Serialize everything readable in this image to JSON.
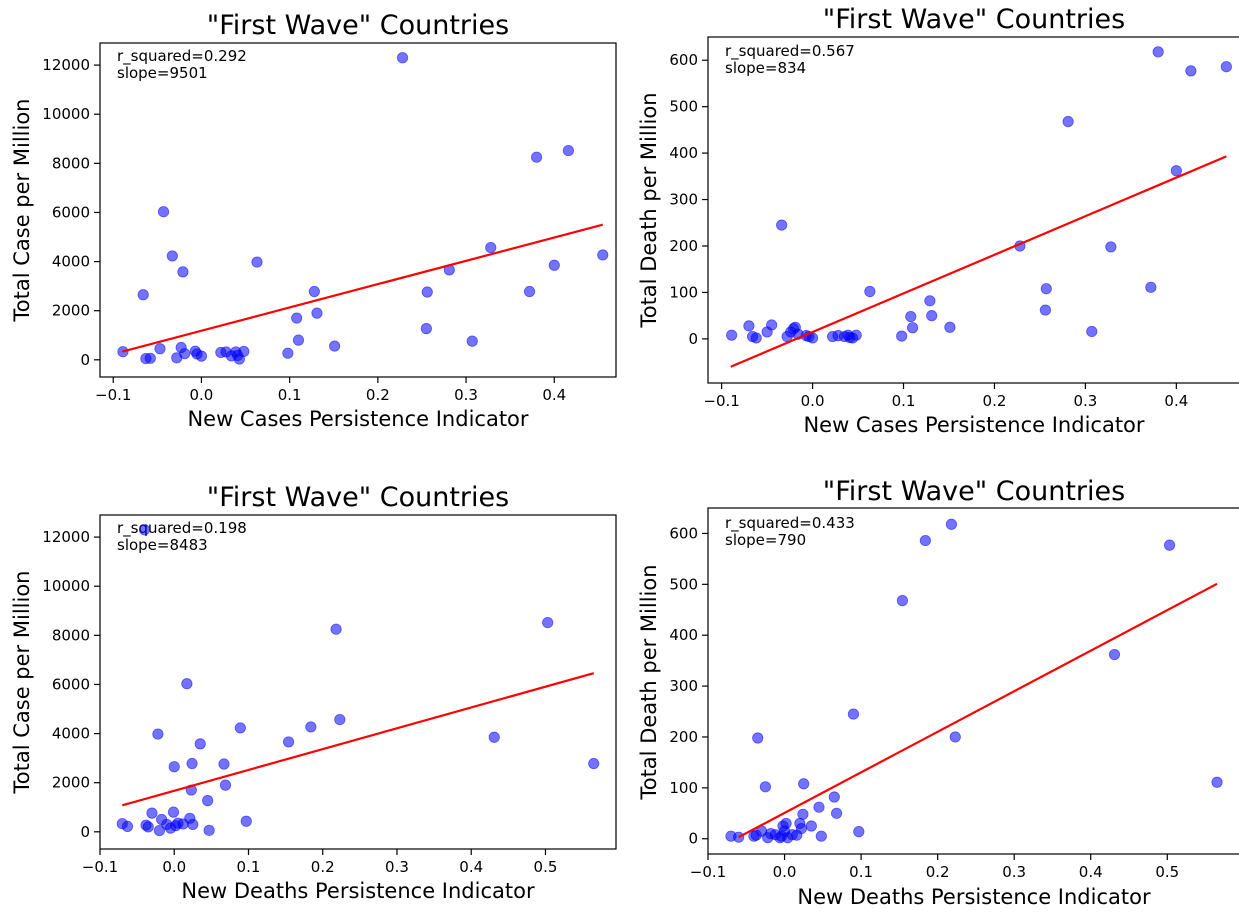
{
  "figure": {
    "background": "#ffffff"
  },
  "style": {
    "point_color": "#0000ff",
    "point_opacity": 0.55,
    "fit_color": "#ff0000"
  },
  "chart_data": [
    {
      "type": "scatter",
      "title": "\"First Wave\" Countries",
      "xlabel": "New Cases Persistence Indicator",
      "ylabel": "Total Case per Million",
      "xlim": [
        -0.115,
        0.47
      ],
      "ylim": [
        -700,
        12900
      ],
      "xticks": [
        -0.1,
        0.0,
        0.1,
        0.2,
        0.3,
        0.4
      ],
      "xtick_labels": [
        "−0.1",
        "0.0",
        "0.1",
        "0.2",
        "0.3",
        "0.4"
      ],
      "yticks": [
        0,
        2000,
        4000,
        6000,
        8000,
        10000,
        12000
      ],
      "ytick_labels": [
        "0",
        "2000",
        "4000",
        "6000",
        "8000",
        "10000",
        "12000"
      ],
      "annotation": [
        "r_squared=0.292",
        "slope=9501"
      ],
      "fit_line": {
        "x": [
          -0.09,
          0.455
        ],
        "y": [
          330,
          5500
        ]
      },
      "points": [
        {
          "x": -0.089,
          "y": 330
        },
        {
          "x": -0.066,
          "y": 2650
        },
        {
          "x": -0.063,
          "y": 50
        },
        {
          "x": -0.058,
          "y": 60
        },
        {
          "x": -0.047,
          "y": 450
        },
        {
          "x": -0.043,
          "y": 6030
        },
        {
          "x": -0.033,
          "y": 4230
        },
        {
          "x": -0.028,
          "y": 80
        },
        {
          "x": -0.023,
          "y": 500
        },
        {
          "x": -0.021,
          "y": 3580
        },
        {
          "x": -0.019,
          "y": 250
        },
        {
          "x": -0.007,
          "y": 350
        },
        {
          "x": -0.005,
          "y": 240
        },
        {
          "x": 0.0,
          "y": 150
        },
        {
          "x": 0.022,
          "y": 300
        },
        {
          "x": 0.028,
          "y": 320
        },
        {
          "x": 0.034,
          "y": 160
        },
        {
          "x": 0.039,
          "y": 320
        },
        {
          "x": 0.041,
          "y": 180
        },
        {
          "x": 0.043,
          "y": 30
        },
        {
          "x": 0.048,
          "y": 340
        },
        {
          "x": 0.063,
          "y": 3980
        },
        {
          "x": 0.098,
          "y": 270
        },
        {
          "x": 0.108,
          "y": 1700
        },
        {
          "x": 0.11,
          "y": 800
        },
        {
          "x": 0.128,
          "y": 2780
        },
        {
          "x": 0.131,
          "y": 1900
        },
        {
          "x": 0.151,
          "y": 560
        },
        {
          "x": 0.228,
          "y": 12300
        },
        {
          "x": 0.255,
          "y": 1270
        },
        {
          "x": 0.256,
          "y": 2760
        },
        {
          "x": 0.281,
          "y": 3660
        },
        {
          "x": 0.307,
          "y": 760
        },
        {
          "x": 0.328,
          "y": 4570
        },
        {
          "x": 0.372,
          "y": 2780
        },
        {
          "x": 0.38,
          "y": 8250
        },
        {
          "x": 0.4,
          "y": 3850
        },
        {
          "x": 0.416,
          "y": 8520
        },
        {
          "x": 0.455,
          "y": 4270
        }
      ]
    },
    {
      "type": "scatter",
      "title": "\"First Wave\" Countries",
      "xlabel": "New Cases Persistence Indicator",
      "ylabel": "Total Death per Million",
      "xlim": [
        -0.115,
        0.47
      ],
      "ylim": [
        -95,
        650
      ],
      "xticks": [
        -0.1,
        0.0,
        0.1,
        0.2,
        0.3,
        0.4
      ],
      "xtick_labels": [
        "−0.1",
        "0.0",
        "0.1",
        "0.2",
        "0.3",
        "0.4"
      ],
      "yticks": [
        0,
        100,
        200,
        300,
        400,
        500,
        600
      ],
      "ytick_labels": [
        "0",
        "100",
        "200",
        "300",
        "400",
        "500",
        "600"
      ],
      "annotation": [
        "r_squared=0.567",
        "slope=834"
      ],
      "fit_line": {
        "x": [
          -0.09,
          0.455
        ],
        "y": [
          -60,
          393
        ]
      },
      "points": [
        {
          "x": -0.089,
          "y": 8
        },
        {
          "x": -0.07,
          "y": 28
        },
        {
          "x": -0.066,
          "y": 5
        },
        {
          "x": -0.062,
          "y": 2
        },
        {
          "x": -0.05,
          "y": 15
        },
        {
          "x": -0.045,
          "y": 30
        },
        {
          "x": -0.034,
          "y": 245
        },
        {
          "x": -0.028,
          "y": 5
        },
        {
          "x": -0.024,
          "y": 15
        },
        {
          "x": -0.021,
          "y": 22
        },
        {
          "x": -0.019,
          "y": 25
        },
        {
          "x": -0.016,
          "y": 10
        },
        {
          "x": -0.007,
          "y": 7
        },
        {
          "x": -0.004,
          "y": 5
        },
        {
          "x": 0.0,
          "y": 2
        },
        {
          "x": 0.022,
          "y": 5
        },
        {
          "x": 0.028,
          "y": 7
        },
        {
          "x": 0.035,
          "y": 5
        },
        {
          "x": 0.039,
          "y": 8
        },
        {
          "x": 0.041,
          "y": 3
        },
        {
          "x": 0.044,
          "y": 2
        },
        {
          "x": 0.048,
          "y": 8
        },
        {
          "x": 0.063,
          "y": 102
        },
        {
          "x": 0.098,
          "y": 6
        },
        {
          "x": 0.108,
          "y": 48
        },
        {
          "x": 0.11,
          "y": 24
        },
        {
          "x": 0.129,
          "y": 82
        },
        {
          "x": 0.131,
          "y": 50
        },
        {
          "x": 0.151,
          "y": 25
        },
        {
          "x": 0.228,
          "y": 200
        },
        {
          "x": 0.256,
          "y": 62
        },
        {
          "x": 0.257,
          "y": 108
        },
        {
          "x": 0.281,
          "y": 468
        },
        {
          "x": 0.307,
          "y": 16
        },
        {
          "x": 0.328,
          "y": 198
        },
        {
          "x": 0.372,
          "y": 111
        },
        {
          "x": 0.38,
          "y": 618
        },
        {
          "x": 0.4,
          "y": 362
        },
        {
          "x": 0.416,
          "y": 577
        },
        {
          "x": 0.455,
          "y": 586
        }
      ]
    },
    {
      "type": "scatter",
      "title": "\"First Wave\" Countries",
      "xlabel": "New Deaths Persistence Indicator",
      "ylabel": "Total Case per Million",
      "xlim": [
        -0.1,
        0.595
      ],
      "ylim": [
        -700,
        12900
      ],
      "xticks": [
        -0.1,
        0.0,
        0.1,
        0.2,
        0.3,
        0.4,
        0.5
      ],
      "xtick_labels": [
        "−0.1",
        "0.0",
        "0.1",
        "0.2",
        "0.3",
        "0.4",
        "0.5"
      ],
      "yticks": [
        0,
        2000,
        4000,
        6000,
        8000,
        10000,
        12000
      ],
      "ytick_labels": [
        "0",
        "2000",
        "4000",
        "6000",
        "8000",
        "10000",
        "12000"
      ],
      "annotation": [
        "r_squared=0.198",
        "slope=8483"
      ],
      "fit_line": {
        "x": [
          -0.07,
          0.565
        ],
        "y": [
          1080,
          6460
        ]
      },
      "points": [
        {
          "x": -0.07,
          "y": 330
        },
        {
          "x": -0.063,
          "y": 220
        },
        {
          "x": -0.04,
          "y": 12300
        },
        {
          "x": -0.038,
          "y": 270
        },
        {
          "x": -0.035,
          "y": 200
        },
        {
          "x": -0.03,
          "y": 760
        },
        {
          "x": -0.022,
          "y": 3980
        },
        {
          "x": -0.02,
          "y": 50
        },
        {
          "x": -0.017,
          "y": 500
        },
        {
          "x": -0.01,
          "y": 300
        },
        {
          "x": -0.005,
          "y": 150
        },
        {
          "x": -0.001,
          "y": 800
        },
        {
          "x": 0.0,
          "y": 2650
        },
        {
          "x": 0.002,
          "y": 250
        },
        {
          "x": 0.005,
          "y": 350
        },
        {
          "x": 0.012,
          "y": 320
        },
        {
          "x": 0.017,
          "y": 6030
        },
        {
          "x": 0.021,
          "y": 550
        },
        {
          "x": 0.023,
          "y": 1700
        },
        {
          "x": 0.024,
          "y": 2780
        },
        {
          "x": 0.025,
          "y": 300
        },
        {
          "x": 0.035,
          "y": 3580
        },
        {
          "x": 0.045,
          "y": 1270
        },
        {
          "x": 0.047,
          "y": 60
        },
        {
          "x": 0.067,
          "y": 2760
        },
        {
          "x": 0.069,
          "y": 1900
        },
        {
          "x": 0.089,
          "y": 4230
        },
        {
          "x": 0.097,
          "y": 430
        },
        {
          "x": 0.154,
          "y": 3660
        },
        {
          "x": 0.184,
          "y": 4270
        },
        {
          "x": 0.218,
          "y": 8250
        },
        {
          "x": 0.223,
          "y": 4570
        },
        {
          "x": 0.431,
          "y": 3850
        },
        {
          "x": 0.503,
          "y": 8520
        },
        {
          "x": 0.565,
          "y": 2780
        }
      ]
    },
    {
      "type": "scatter",
      "title": "\"First Wave\" Countries",
      "xlabel": "New Deaths Persistence Indicator",
      "ylabel": "Total Death per Million",
      "xlim": [
        -0.1,
        0.595
      ],
      "ylim": [
        -30,
        650
      ],
      "xticks": [
        -0.1,
        0.0,
        0.1,
        0.2,
        0.3,
        0.4,
        0.5
      ],
      "xtick_labels": [
        "−0.1",
        "0.0",
        "0.1",
        "0.2",
        "0.3",
        "0.4",
        "0.5"
      ],
      "yticks": [
        0,
        100,
        200,
        300,
        400,
        500,
        600
      ],
      "ytick_labels": [
        "0",
        "100",
        "200",
        "300",
        "400",
        "500",
        "600"
      ],
      "annotation": [
        "r_squared=0.433",
        "slope=790"
      ],
      "fit_line": {
        "x": [
          -0.06,
          0.565
        ],
        "y": [
          3,
          501
        ]
      },
      "points": [
        {
          "x": -0.07,
          "y": 5
        },
        {
          "x": -0.06,
          "y": 3
        },
        {
          "x": -0.04,
          "y": 5
        },
        {
          "x": -0.037,
          "y": 7
        },
        {
          "x": -0.035,
          "y": 198
        },
        {
          "x": -0.03,
          "y": 15
        },
        {
          "x": -0.025,
          "y": 102
        },
        {
          "x": -0.022,
          "y": 2
        },
        {
          "x": -0.018,
          "y": 10
        },
        {
          "x": -0.012,
          "y": 8
        },
        {
          "x": -0.006,
          "y": 2
        },
        {
          "x": -0.004,
          "y": 5
        },
        {
          "x": -0.002,
          "y": 25
        },
        {
          "x": 0.0,
          "y": 15
        },
        {
          "x": 0.002,
          "y": 30
        },
        {
          "x": 0.004,
          "y": 2
        },
        {
          "x": 0.01,
          "y": 8
        },
        {
          "x": 0.016,
          "y": 7
        },
        {
          "x": 0.02,
          "y": 30
        },
        {
          "x": 0.022,
          "y": 20
        },
        {
          "x": 0.024,
          "y": 48
        },
        {
          "x": 0.025,
          "y": 108
        },
        {
          "x": 0.035,
          "y": 25
        },
        {
          "x": 0.045,
          "y": 62
        },
        {
          "x": 0.048,
          "y": 5
        },
        {
          "x": 0.065,
          "y": 82
        },
        {
          "x": 0.068,
          "y": 50
        },
        {
          "x": 0.09,
          "y": 245
        },
        {
          "x": 0.097,
          "y": 14
        },
        {
          "x": 0.154,
          "y": 468
        },
        {
          "x": 0.184,
          "y": 586
        },
        {
          "x": 0.218,
          "y": 618
        },
        {
          "x": 0.223,
          "y": 200
        },
        {
          "x": 0.431,
          "y": 362
        },
        {
          "x": 0.503,
          "y": 577
        },
        {
          "x": 0.565,
          "y": 111
        }
      ]
    }
  ]
}
